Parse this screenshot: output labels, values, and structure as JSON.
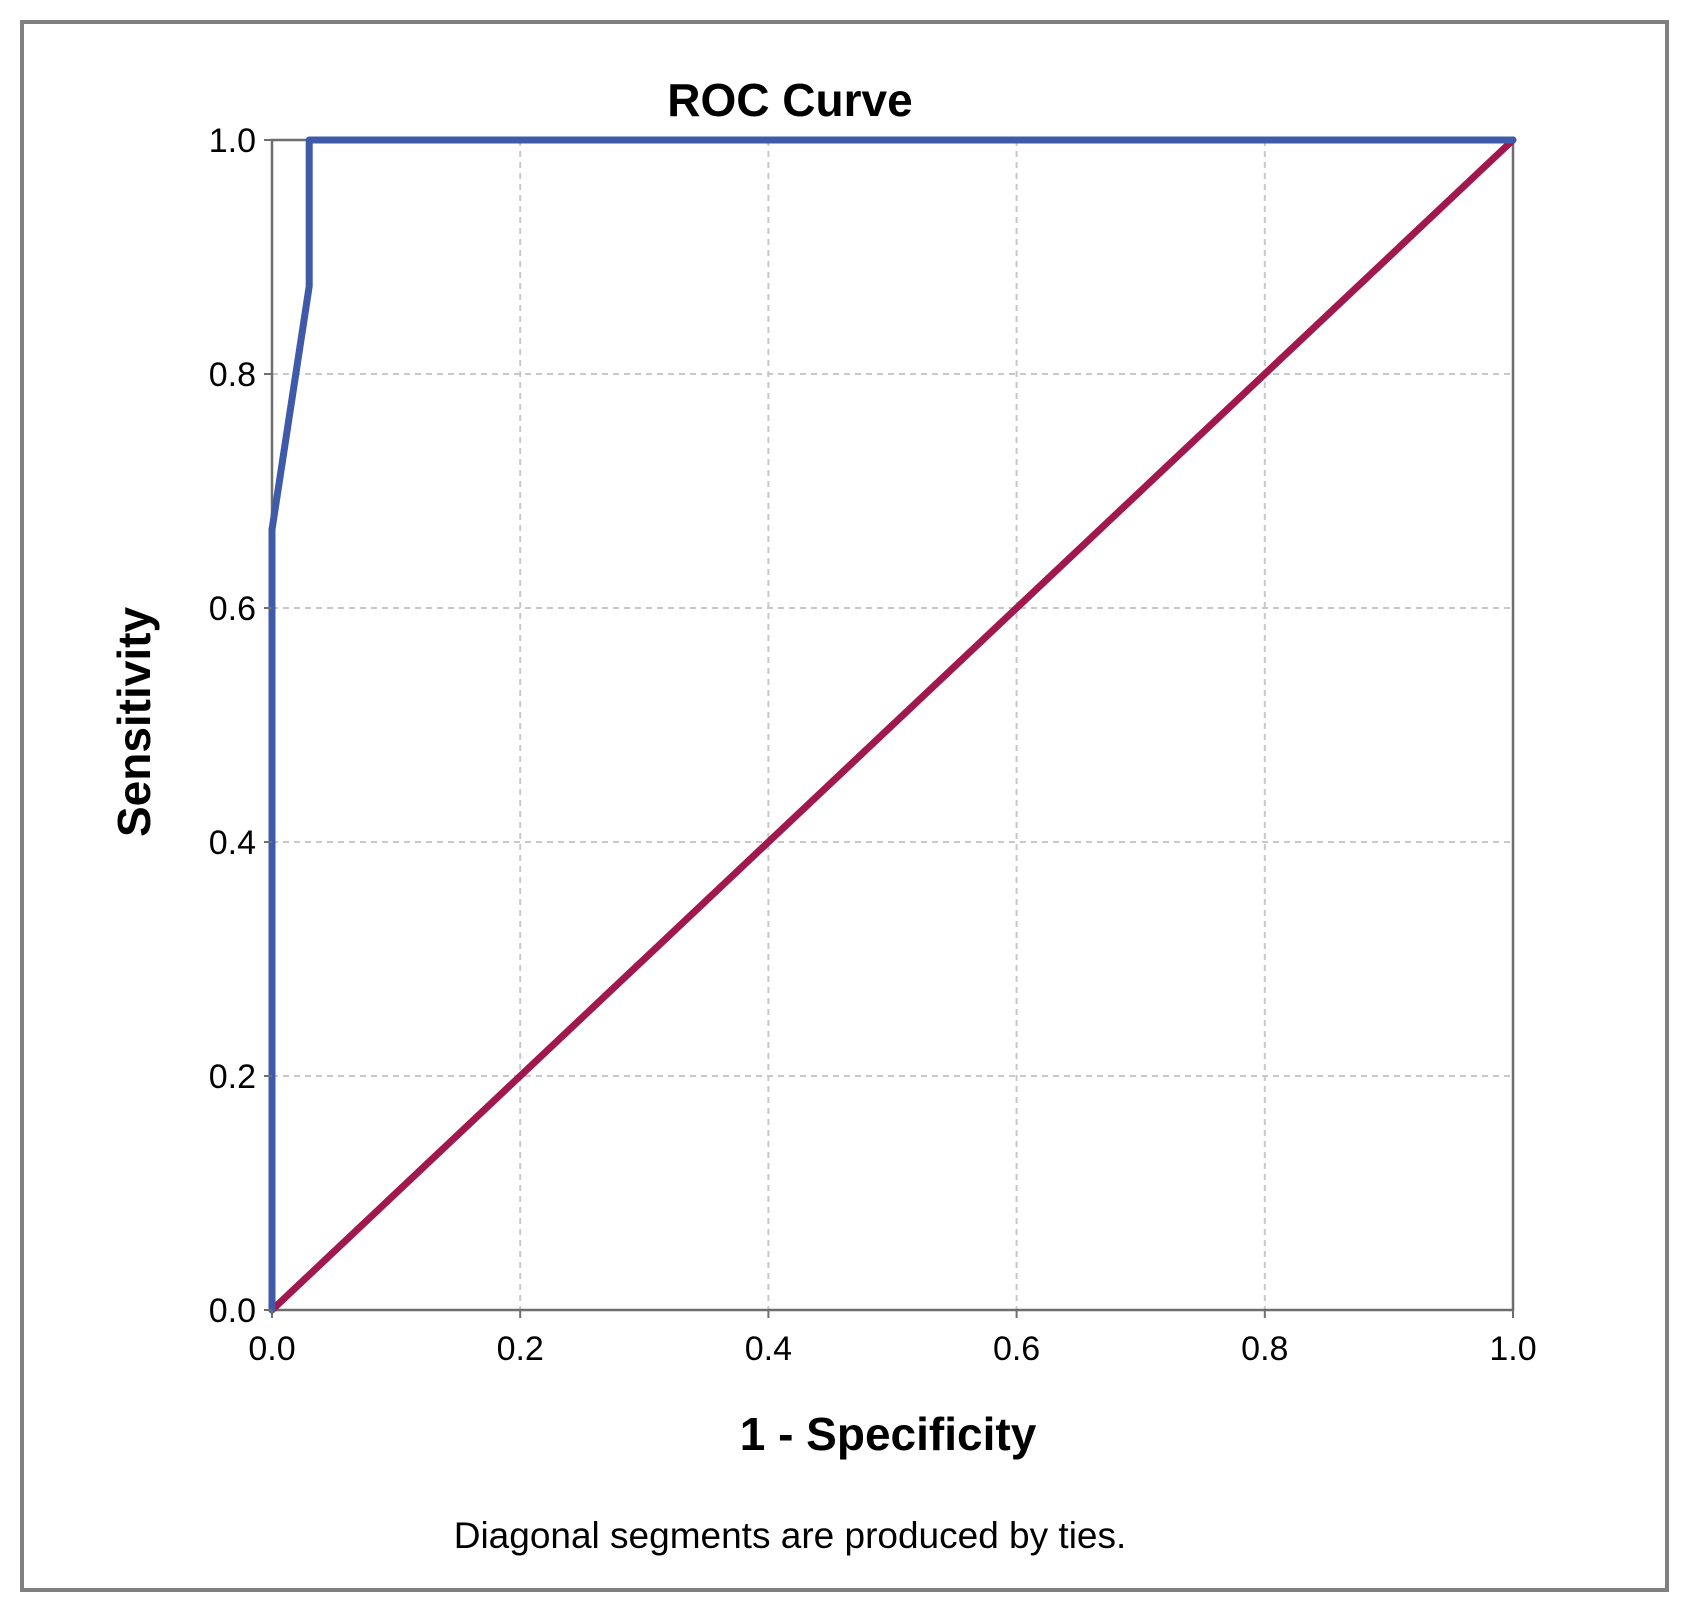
{
  "chart_data": {
    "type": "line",
    "title": "ROC Curve",
    "xlabel": "1 - Specificity",
    "ylabel": "Sensitivity",
    "footnote": "Diagonal segments are produced by ties.",
    "xlim": [
      0,
      1
    ],
    "ylim": [
      0,
      1
    ],
    "xticks": [
      "0.0",
      "0.2",
      "0.4",
      "0.6",
      "0.8",
      "1.0"
    ],
    "yticks": [
      "0.0",
      "0.2",
      "0.4",
      "0.6",
      "0.8",
      "1.0"
    ],
    "grid": true,
    "series": [
      {
        "name": "ROC curve",
        "color": "#3f5aa8",
        "x": [
          0.0,
          0.0,
          0.03,
          0.03,
          1.0
        ],
        "y": [
          0.0,
          0.667,
          0.875,
          1.0,
          1.0
        ]
      },
      {
        "name": "Reference line",
        "color": "#a0184e",
        "x": [
          0.0,
          1.0
        ],
        "y": [
          0.0,
          1.0
        ]
      }
    ]
  }
}
